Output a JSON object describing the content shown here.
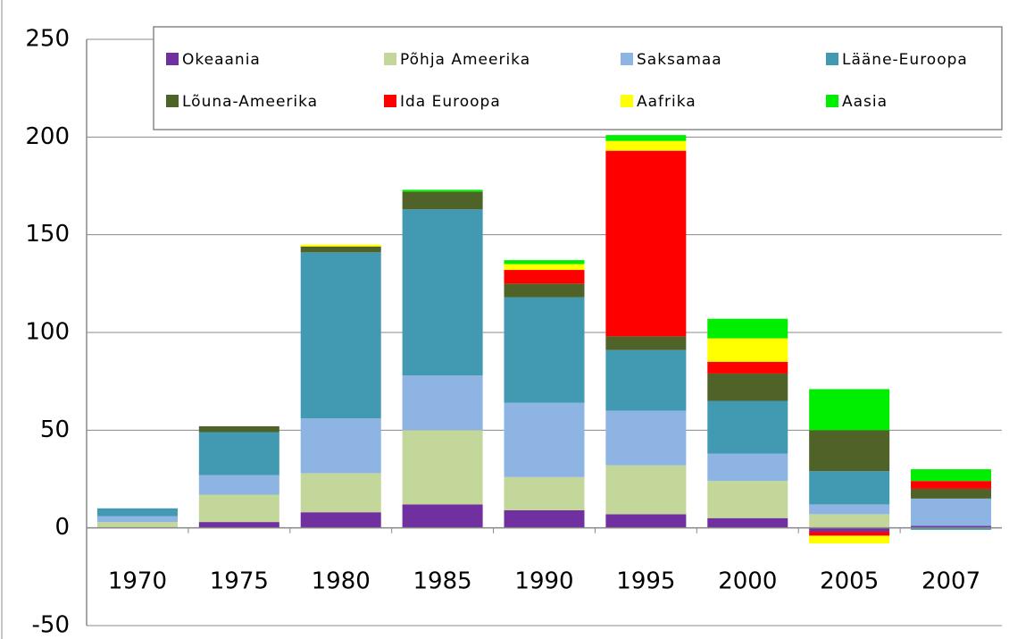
{
  "chart_data": {
    "type": "stacked_bar",
    "categories": [
      "1970",
      "1975",
      "1980",
      "1985",
      "1990",
      "1995",
      "2000",
      "2005",
      "2007"
    ],
    "series": [
      {
        "name": "Okeaania",
        "color": "#7030a0",
        "values": [
          0,
          3,
          8,
          12,
          9,
          7,
          5,
          -2,
          1
        ]
      },
      {
        "name": "Põhja Ameerika",
        "color": "#c4d79b",
        "values": [
          3,
          14,
          20,
          38,
          17,
          25,
          19,
          7,
          0
        ]
      },
      {
        "name": "Saksamaa",
        "color": "#8db4e2",
        "values": [
          3,
          10,
          28,
          28,
          38,
          28,
          14,
          5,
          14
        ]
      },
      {
        "name": "Lääne-Euroopa",
        "color": "#4299b2",
        "values": [
          4,
          22,
          85,
          85,
          54,
          31,
          27,
          17,
          -1
        ]
      },
      {
        "name": "Lõuna-Ameerika",
        "color": "#4f6228",
        "values": [
          0,
          3,
          3,
          9,
          7,
          7,
          14,
          21,
          5
        ]
      },
      {
        "name": "Ida Euroopa",
        "color": "#ff0000",
        "values": [
          0,
          0,
          0,
          0,
          7,
          95,
          6,
          -2,
          4
        ]
      },
      {
        "name": "Aafrika",
        "color": "#ffff00",
        "values": [
          0,
          0,
          1,
          0,
          3,
          5,
          12,
          -4,
          0
        ]
      },
      {
        "name": "Aasia",
        "color": "#00ee00",
        "values": [
          0,
          0,
          0,
          1,
          2,
          3,
          10,
          21,
          6
        ]
      }
    ],
    "ylim": [
      -50,
      250
    ],
    "yticks": [
      -50,
      0,
      50,
      100,
      150,
      200,
      250
    ],
    "grid": true
  }
}
